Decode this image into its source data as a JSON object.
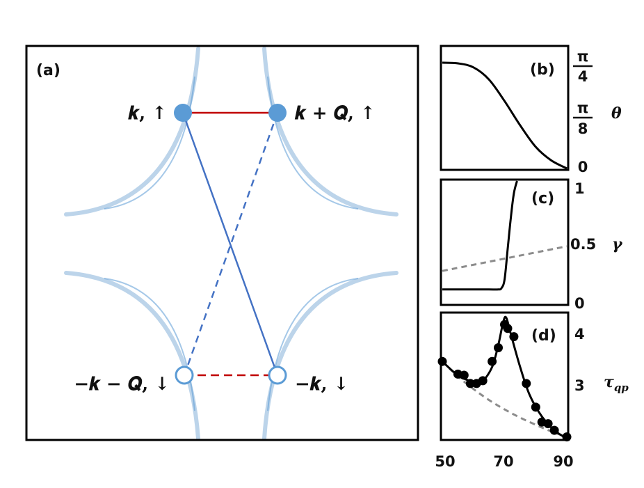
{
  "panel_a": {
    "label": "(a)",
    "states": {
      "k_up": "𝒌, ↑",
      "kQ_up": "𝒌 + 𝑸, ↑",
      "mkQ_down": "−𝒌 − 𝑸, ↓",
      "mk_down": "−𝒌, ↓"
    }
  },
  "panel_b": {
    "label": "(b)",
    "y_symbol": "θ",
    "yticks": [
      {
        "num": "π",
        "den": "4"
      },
      {
        "num": "π",
        "den": "8"
      },
      {
        "num": "0",
        "den": ""
      }
    ]
  },
  "panel_c": {
    "label": "(c)",
    "y_symbol": "γ",
    "yticks": [
      "1",
      "0.5",
      "0"
    ]
  },
  "panel_d": {
    "label": "(d)",
    "y_symbol": "τ",
    "y_symbol_sub": "qp",
    "yticks": [
      "4",
      "3"
    ]
  },
  "x_axis": {
    "ticks": [
      "50",
      "70",
      "90"
    ]
  },
  "colors": {
    "fermi_surface": "#bcd4ea",
    "state_blue": "#5b9bd5",
    "line_blue": "#4472c4",
    "line_red": "#c00000",
    "dashed_grey": "#8c8c8c",
    "black": "#000000"
  },
  "chart_data": [
    {
      "panel": "b",
      "type": "line",
      "x": [
        50,
        55,
        60,
        65,
        70,
        75,
        80,
        85,
        90
      ],
      "y": [
        0.785,
        0.78,
        0.75,
        0.66,
        0.5,
        0.32,
        0.16,
        0.06,
        0.0
      ],
      "ylim": [
        0,
        0.785
      ],
      "xlim": [
        50,
        90
      ]
    },
    {
      "panel": "c",
      "type": "line",
      "series": [
        {
          "style": "solid",
          "x": [
            50,
            55,
            60,
            65,
            68,
            69,
            70,
            71,
            72,
            73,
            74
          ],
          "y": [
            0.12,
            0.12,
            0.12,
            0.12,
            0.12,
            0.13,
            0.2,
            0.45,
            0.7,
            0.9,
            1.0
          ]
        },
        {
          "style": "dashed",
          "x": [
            50,
            90
          ],
          "y": [
            0.27,
            0.47
          ]
        }
      ],
      "ylim": [
        0,
        1
      ],
      "xlim": [
        50,
        90
      ]
    },
    {
      "panel": "d",
      "type": "scatter",
      "points_x": [
        50,
        55,
        57,
        59,
        61,
        63,
        66,
        68,
        70,
        71,
        73,
        77,
        80,
        82,
        84,
        86,
        90
      ],
      "points_y": [
        3.45,
        3.22,
        3.2,
        3.05,
        3.05,
        3.1,
        3.45,
        3.7,
        4.12,
        4.05,
        3.9,
        3.05,
        2.62,
        2.35,
        2.32,
        2.2,
        2.08
      ],
      "series": [
        {
          "style": "solid",
          "x": [
            50,
            55,
            60,
            63,
            66,
            68,
            69.5,
            70.5,
            72,
            75,
            78,
            82,
            86,
            90
          ],
          "y": [
            3.45,
            3.2,
            3.08,
            3.1,
            3.35,
            3.75,
            4.15,
            4.25,
            3.95,
            3.35,
            2.85,
            2.45,
            2.2,
            2.05
          ]
        },
        {
          "style": "dashed",
          "x": [
            50,
            55,
            60,
            65,
            70,
            75,
            80,
            85,
            90
          ],
          "y": [
            3.45,
            3.18,
            2.95,
            2.75,
            2.58,
            2.43,
            2.3,
            2.18,
            2.08
          ]
        }
      ],
      "ylim": [
        2.05,
        4.3
      ],
      "xlim": [
        50,
        90
      ]
    }
  ]
}
